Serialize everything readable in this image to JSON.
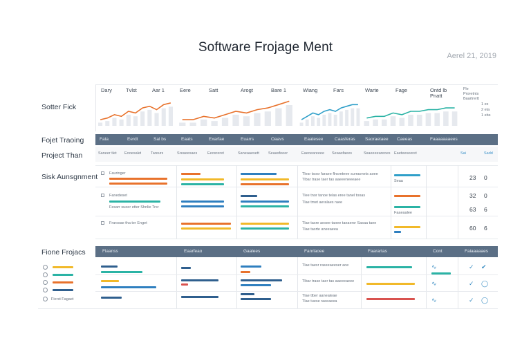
{
  "header": {
    "title": "Software Frojage Ment",
    "date": "Aerel 21, 2019"
  },
  "colors": {
    "orange": "#e8722c",
    "teal": "#2bb3a5",
    "blue": "#2f7fbf",
    "navy": "#2f5f8e",
    "yellow": "#f1b92a",
    "red": "#d9534f",
    "band": "#5b6f85"
  },
  "rows": {
    "sotter_fick": "Sotter Fick",
    "fojet_tracing": "Fojet Traoing",
    "project_than": "Project Than",
    "sisk_assignment": "Sisk Aunsgnment",
    "fione_projecs": "Fione Frojacs"
  },
  "chart_panels": [
    {
      "h1": "Dary",
      "h2": "Tvlst",
      "h3": "Aar 1",
      "color": "#e8722c",
      "values": [
        2,
        3,
        5,
        4,
        7,
        6,
        9,
        10,
        8,
        11,
        12
      ]
    },
    {
      "h1": "Eere",
      "h2": "Satt",
      "h3": "Arogt",
      "h4": "Bare 1",
      "color": "#e8722c",
      "values": [
        2,
        2,
        4,
        3,
        5,
        7,
        6,
        8,
        9,
        11,
        13
      ]
    },
    {
      "h1": "Wiang",
      "h2": "Fars",
      "color": "#2f9fc9",
      "values": [
        2,
        4,
        6,
        5,
        7,
        8,
        7,
        9,
        10,
        11,
        11
      ]
    },
    {
      "h1": "Warte",
      "h2": "Fage",
      "h3": "Ontd lb",
      "h4": "Pnatt",
      "color": "#2bb3a5",
      "values": [
        3,
        4,
        4,
        6,
        5,
        7,
        7,
        8,
        8,
        9,
        9
      ]
    }
  ],
  "legend_small": [
    "Fle",
    "Proretnts",
    "1 ex",
    "2 eta",
    "1 ebs",
    "Baartrertt"
  ],
  "band1": [
    "Fata",
    "Eerdt",
    "Sal bs",
    "Eaats",
    "Exarfae",
    "Euarrs",
    "Oaavs",
    "Eaatesee",
    "Caasferas",
    "Saoraetaee",
    "Caeeas",
    "Faaaaaaaees"
  ],
  "sub1": [
    "Saneer tlet",
    "Eooesalet",
    "Tareurs",
    "Sreaeesaes",
    "Eeosreret",
    "Saneaaesett",
    "Seaasfeeer",
    "Eaeoeareeee",
    "Seaasfaees",
    "Ssaeeeeareoes",
    "Eaeteeseeret",
    "Sai",
    "Sadd"
  ],
  "sisk": {
    "items": [
      "Fauringer",
      "Fanedeset",
      "Fesarr sueer etter Shnlie Trsr",
      "Frarssae tha ter Enget"
    ],
    "notes": [
      "Tlesr tsosr faraee flnsreteee surraonets aoee",
      "Tlbar trase taer tas aaeeeneeeaee",
      "Tlee tnor tanoe telas eree tanel tooas",
      "Tlae tmet aeralaes raee",
      "Tlae tasre aosee taoee taeaersr Sasaa taee",
      "Tlae tasrte aneeaeea"
    ],
    "side": [
      "Seaa",
      "Faaeaalee"
    ],
    "nums": [
      [
        "23",
        "0"
      ],
      [
        "32",
        "0"
      ],
      [
        "63",
        "6"
      ],
      [
        "60",
        "6"
      ]
    ]
  },
  "band2": [
    "Flaanss",
    "Eaarfeao",
    "Gaalees",
    "Fanrlaoee",
    "Faarartas",
    "Cont",
    "Faiaaaaaes"
  ],
  "fione": {
    "items": [
      "Fierst Fagaet"
    ],
    "notes": [
      "Tlae taesr raseeaeeser aoe",
      "Tlbar trase taer tas aaeeeaeee",
      "Tlae tlber aaneateae",
      "Tlae tuese raeeaeea"
    ]
  }
}
